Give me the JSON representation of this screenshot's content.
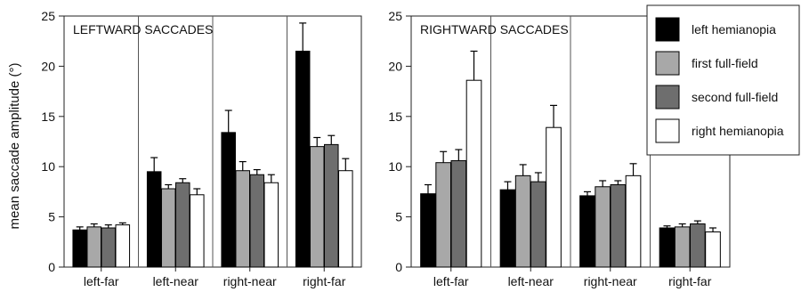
{
  "figure": {
    "ylabel": "mean saccade amplitude (°)"
  },
  "chart_data": [
    {
      "type": "bar",
      "title": "LEFTWARD SACCADES",
      "xlabel": "",
      "ylabel": "mean saccade amplitude (°)",
      "ylim": [
        0,
        25
      ],
      "yticks": [
        0,
        5,
        10,
        15,
        20,
        25
      ],
      "grid": false,
      "categories": [
        "left-far",
        "left-near",
        "right-near",
        "right-far"
      ],
      "series": [
        {
          "name": "left hemianopia",
          "color": "#000000",
          "values": [
            3.7,
            9.5,
            13.4,
            21.5
          ],
          "errors": [
            0.3,
            1.4,
            2.2,
            2.8
          ]
        },
        {
          "name": "first full-field",
          "color": "#a8a8a8",
          "values": [
            4.0,
            7.8,
            9.6,
            12.0
          ],
          "errors": [
            0.3,
            0.4,
            0.9,
            0.9
          ]
        },
        {
          "name": "second full-field",
          "color": "#6e6e6e",
          "values": [
            3.9,
            8.4,
            9.2,
            12.2
          ],
          "errors": [
            0.3,
            0.4,
            0.5,
            0.9
          ]
        },
        {
          "name": "right hemianopia",
          "color": "#ffffff",
          "values": [
            4.2,
            7.2,
            8.4,
            9.6
          ],
          "errors": [
            0.2,
            0.6,
            0.8,
            1.2
          ]
        }
      ]
    },
    {
      "type": "bar",
      "title": "RIGHTWARD SACCADES",
      "xlabel": "",
      "ylabel": "",
      "ylim": [
        0,
        25
      ],
      "yticks": [
        0,
        5,
        10,
        15,
        20,
        25
      ],
      "grid": false,
      "categories": [
        "left-far",
        "left-near",
        "right-near",
        "right-far"
      ],
      "legend_position": "top-right",
      "series": [
        {
          "name": "left hemianopia",
          "color": "#000000",
          "values": [
            7.3,
            7.7,
            7.1,
            3.9
          ],
          "errors": [
            0.9,
            0.8,
            0.4,
            0.2
          ]
        },
        {
          "name": "first full-field",
          "color": "#a8a8a8",
          "values": [
            10.4,
            9.1,
            8.0,
            4.0
          ],
          "errors": [
            1.1,
            1.1,
            0.6,
            0.3
          ]
        },
        {
          "name": "second full-field",
          "color": "#6e6e6e",
          "values": [
            10.6,
            8.5,
            8.2,
            4.3
          ],
          "errors": [
            1.1,
            0.9,
            0.4,
            0.3
          ]
        },
        {
          "name": "right hemianopia",
          "color": "#ffffff",
          "values": [
            18.6,
            13.9,
            9.1,
            3.5
          ],
          "errors": [
            2.9,
            2.2,
            1.2,
            0.4
          ]
        }
      ]
    }
  ]
}
